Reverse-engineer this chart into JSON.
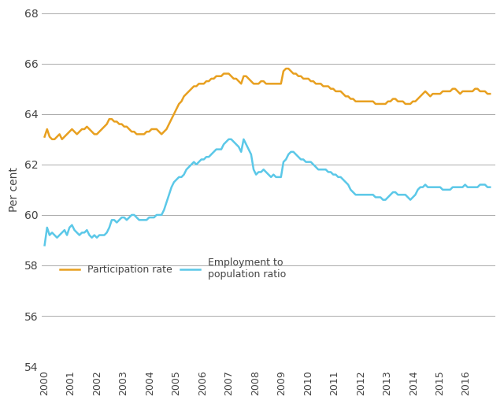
{
  "title": "",
  "ylabel": "Per cent",
  "ylim": [
    54,
    68
  ],
  "yticks": [
    54,
    56,
    58,
    60,
    62,
    64,
    66,
    68
  ],
  "background_color": "#ffffff",
  "grid_color": "#aaaaaa",
  "employment_color": "#5bc8e8",
  "participation_color": "#e8a020",
  "legend_employment": "Employment to\npopulation ratio",
  "legend_participation": "Participation rate",
  "employment_data": [
    58.8,
    59.5,
    59.2,
    59.3,
    59.2,
    59.1,
    59.2,
    59.3,
    59.4,
    59.2,
    59.5,
    59.6,
    59.4,
    59.3,
    59.2,
    59.3,
    59.3,
    59.4,
    59.2,
    59.1,
    59.2,
    59.1,
    59.2,
    59.2,
    59.2,
    59.3,
    59.5,
    59.8,
    59.8,
    59.7,
    59.8,
    59.9,
    59.9,
    59.8,
    59.9,
    60.0,
    60.0,
    59.9,
    59.8,
    59.8,
    59.8,
    59.8,
    59.9,
    59.9,
    59.9,
    60.0,
    60.0,
    60.0,
    60.2,
    60.5,
    60.8,
    61.1,
    61.3,
    61.4,
    61.5,
    61.5,
    61.6,
    61.8,
    61.9,
    62.0,
    62.1,
    62.0,
    62.1,
    62.2,
    62.2,
    62.3,
    62.3,
    62.4,
    62.5,
    62.6,
    62.6,
    62.6,
    62.8,
    62.9,
    63.0,
    63.0,
    62.9,
    62.8,
    62.7,
    62.5,
    63.0,
    62.8,
    62.6,
    62.4,
    61.8,
    61.6,
    61.7,
    61.7,
    61.8,
    61.7,
    61.6,
    61.5,
    61.6,
    61.5,
    61.5,
    61.5,
    62.1,
    62.2,
    62.4,
    62.5,
    62.5,
    62.4,
    62.3,
    62.2,
    62.2,
    62.1,
    62.1,
    62.1,
    62.0,
    61.9,
    61.8,
    61.8,
    61.8,
    61.8,
    61.7,
    61.7,
    61.6,
    61.6,
    61.5,
    61.5,
    61.4,
    61.3,
    61.2,
    61.0,
    60.9,
    60.8,
    60.8,
    60.8,
    60.8,
    60.8,
    60.8,
    60.8,
    60.8,
    60.7,
    60.7,
    60.7,
    60.6,
    60.6,
    60.7,
    60.8,
    60.9,
    60.9,
    60.8,
    60.8,
    60.8,
    60.8,
    60.7,
    60.6,
    60.7,
    60.8,
    61.0,
    61.1,
    61.1,
    61.2,
    61.1,
    61.1,
    61.1,
    61.1,
    61.1,
    61.1,
    61.0,
    61.0,
    61.0,
    61.0,
    61.1,
    61.1,
    61.1,
    61.1,
    61.1,
    61.2,
    61.1,
    61.1,
    61.1,
    61.1,
    61.1,
    61.2,
    61.2,
    61.2,
    61.1,
    61.1
  ],
  "participation_data": [
    63.1,
    63.4,
    63.1,
    63.0,
    63.0,
    63.1,
    63.2,
    63.0,
    63.1,
    63.2,
    63.3,
    63.4,
    63.3,
    63.2,
    63.3,
    63.4,
    63.4,
    63.5,
    63.4,
    63.3,
    63.2,
    63.2,
    63.3,
    63.4,
    63.5,
    63.6,
    63.8,
    63.8,
    63.7,
    63.7,
    63.6,
    63.6,
    63.5,
    63.5,
    63.4,
    63.3,
    63.3,
    63.2,
    63.2,
    63.2,
    63.2,
    63.3,
    63.3,
    63.4,
    63.4,
    63.4,
    63.3,
    63.2,
    63.3,
    63.4,
    63.6,
    63.8,
    64.0,
    64.2,
    64.4,
    64.5,
    64.7,
    64.8,
    64.9,
    65.0,
    65.1,
    65.1,
    65.2,
    65.2,
    65.2,
    65.3,
    65.3,
    65.4,
    65.4,
    65.5,
    65.5,
    65.5,
    65.6,
    65.6,
    65.6,
    65.5,
    65.4,
    65.4,
    65.3,
    65.2,
    65.5,
    65.5,
    65.4,
    65.3,
    65.2,
    65.2,
    65.2,
    65.3,
    65.3,
    65.2,
    65.2,
    65.2,
    65.2,
    65.2,
    65.2,
    65.2,
    65.7,
    65.8,
    65.8,
    65.7,
    65.6,
    65.6,
    65.5,
    65.5,
    65.4,
    65.4,
    65.4,
    65.3,
    65.3,
    65.2,
    65.2,
    65.2,
    65.1,
    65.1,
    65.1,
    65.0,
    65.0,
    64.9,
    64.9,
    64.9,
    64.8,
    64.7,
    64.7,
    64.6,
    64.6,
    64.5,
    64.5,
    64.5,
    64.5,
    64.5,
    64.5,
    64.5,
    64.5,
    64.4,
    64.4,
    64.4,
    64.4,
    64.4,
    64.5,
    64.5,
    64.6,
    64.6,
    64.5,
    64.5,
    64.5,
    64.4,
    64.4,
    64.4,
    64.5,
    64.5,
    64.6,
    64.7,
    64.8,
    64.9,
    64.8,
    64.7,
    64.8,
    64.8,
    64.8,
    64.8,
    64.9,
    64.9,
    64.9,
    64.9,
    65.0,
    65.0,
    64.9,
    64.8,
    64.9,
    64.9,
    64.9,
    64.9,
    64.9,
    65.0,
    65.0,
    64.9,
    64.9,
    64.9,
    64.8,
    64.8
  ],
  "x_start": 2000.0,
  "xtick_years": [
    2000,
    2001,
    2002,
    2003,
    2004,
    2005,
    2006,
    2007,
    2008,
    2009,
    2010,
    2011,
    2012,
    2013,
    2014,
    2015,
    2016
  ]
}
